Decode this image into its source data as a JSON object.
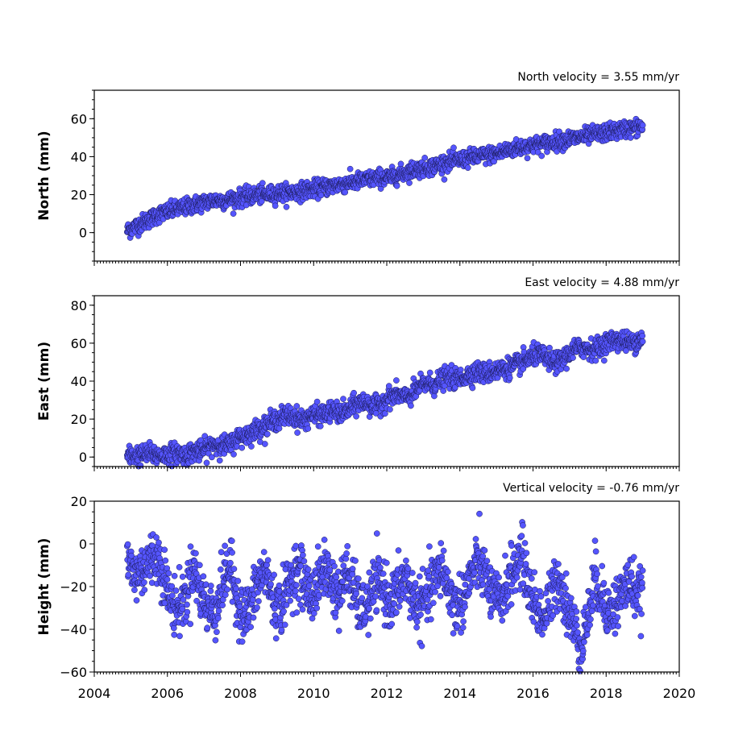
{
  "chart_data": [
    {
      "type": "scatter",
      "title": "North velocity = 3.55 mm/yr",
      "ylabel": "North (mm)",
      "xlabel": "",
      "xlim": [
        2004,
        2020
      ],
      "ylim": [
        -15,
        75
      ],
      "yticks": [
        "0",
        "20",
        "40",
        "60"
      ],
      "ytick_values": [
        0,
        20,
        40,
        60
      ],
      "point_color": "#5555ff",
      "series": [
        {
          "x": [
            2004.9,
            2005.0,
            2005.2,
            2005.4,
            2005.6,
            2005.8,
            2006.0,
            2006.2,
            2006.4,
            2006.6,
            2006.8,
            2007.0,
            2007.3,
            2007.6,
            2007.9,
            2008.2,
            2008.5,
            2008.8,
            2009.1,
            2009.4,
            2009.7,
            2010.0,
            2010.3,
            2010.6,
            2010.9,
            2011.2,
            2011.5,
            2011.8,
            2012.1,
            2012.4,
            2012.7,
            2013.0,
            2013.3,
            2013.6,
            2013.9,
            2014.2,
            2014.5,
            2014.8,
            2015.1,
            2015.4,
            2015.7,
            2016.0,
            2016.3,
            2016.6,
            2016.9,
            2017.2,
            2017.5,
            2017.8,
            2018.1,
            2018.4,
            2018.7,
            2019.0
          ],
          "y": [
            1,
            2,
            4,
            6,
            8,
            10,
            11,
            12,
            13,
            14,
            15,
            16,
            17,
            17,
            18,
            19,
            20,
            20,
            21,
            21,
            22,
            23,
            24,
            25,
            26,
            27,
            28,
            29,
            29,
            31,
            33,
            34,
            35,
            37,
            38,
            39,
            40,
            41,
            42,
            44,
            45,
            46,
            47,
            48,
            49,
            50,
            51,
            52,
            53,
            54,
            55,
            56
          ]
        }
      ]
    },
    {
      "type": "scatter",
      "title": "East velocity = 4.88 mm/yr",
      "ylabel": "East (mm)",
      "xlabel": "",
      "xlim": [
        2004,
        2020
      ],
      "ylim": [
        -5,
        85
      ],
      "yticks": [
        "0",
        "20",
        "40",
        "60",
        "80"
      ],
      "ytick_values": [
        0,
        20,
        40,
        60,
        80
      ],
      "point_color": "#5555ff",
      "series": [
        {
          "x": [
            2004.9,
            2005.1,
            2005.3,
            2005.5,
            2005.7,
            2005.9,
            2006.1,
            2006.3,
            2006.5,
            2006.7,
            2006.9,
            2007.1,
            2007.3,
            2007.5,
            2007.7,
            2007.9,
            2008.1,
            2008.3,
            2008.5,
            2008.7,
            2008.9,
            2009.1,
            2009.3,
            2009.5,
            2009.7,
            2009.9,
            2010.1,
            2010.3,
            2010.5,
            2010.7,
            2010.9,
            2011.1,
            2011.3,
            2011.5,
            2011.7,
            2011.9,
            2012.1,
            2012.3,
            2012.5,
            2012.7,
            2012.9,
            2013.1,
            2013.3,
            2013.5,
            2013.7,
            2013.9,
            2014.1,
            2014.3,
            2014.5,
            2014.7,
            2014.9,
            2015.1,
            2015.3,
            2015.5,
            2015.7,
            2015.9,
            2016.1,
            2016.3,
            2016.5,
            2016.7,
            2016.9,
            2017.1,
            2017.3,
            2017.5,
            2017.7,
            2017.9,
            2018.1,
            2018.3,
            2018.5,
            2018.7,
            2018.9,
            2019.0
          ],
          "y": [
            0,
            1,
            1,
            2,
            1,
            1,
            2,
            2,
            1,
            3,
            3,
            5,
            7,
            6,
            6,
            10,
            11,
            13,
            15,
            17,
            19,
            21,
            22,
            21,
            19,
            22,
            22,
            23,
            24,
            23,
            24,
            27,
            29,
            28,
            26,
            29,
            32,
            33,
            31,
            33,
            37,
            39,
            38,
            41,
            42,
            41,
            42,
            44,
            45,
            44,
            45,
            46,
            47,
            48,
            50,
            52,
            54,
            53,
            50,
            50,
            53,
            56,
            58,
            57,
            57,
            59,
            61,
            62,
            61,
            60,
            62,
            63
          ]
        }
      ]
    },
    {
      "type": "scatter",
      "title": "Vertical velocity = -0.76 mm/yr",
      "ylabel": "Height (mm)",
      "xlabel": "",
      "xlim": [
        2004,
        2020
      ],
      "ylim": [
        -60,
        20
      ],
      "yticks": [
        "−60",
        "−40",
        "−20",
        "0",
        "20"
      ],
      "ytick_values": [
        -60,
        -40,
        -20,
        0,
        20
      ],
      "xticks": [
        "2004",
        "2006",
        "2008",
        "2010",
        "2012",
        "2014",
        "2016",
        "2018",
        "2020"
      ],
      "xtick_values": [
        2004,
        2006,
        2008,
        2010,
        2012,
        2014,
        2016,
        2018,
        2020
      ],
      "point_color": "#5555ff",
      "series": [
        {
          "x": [
            2004.9,
            2005.1,
            2005.3,
            2005.5,
            2005.7,
            2005.9,
            2006.1,
            2006.3,
            2006.5,
            2006.7,
            2006.9,
            2007.1,
            2007.3,
            2007.5,
            2007.7,
            2007.9,
            2008.1,
            2008.3,
            2008.5,
            2008.7,
            2008.9,
            2009.1,
            2009.3,
            2009.5,
            2009.7,
            2009.9,
            2010.1,
            2010.3,
            2010.5,
            2010.7,
            2010.9,
            2011.1,
            2011.3,
            2011.5,
            2011.7,
            2011.9,
            2012.1,
            2012.3,
            2012.5,
            2012.7,
            2012.9,
            2013.1,
            2013.3,
            2013.5,
            2013.7,
            2013.9,
            2014.1,
            2014.3,
            2014.5,
            2014.7,
            2014.9,
            2015.1,
            2015.3,
            2015.5,
            2015.7,
            2015.9,
            2016.1,
            2016.3,
            2016.5,
            2016.7,
            2016.9,
            2017.1,
            2017.3,
            2017.5,
            2017.7,
            2017.9,
            2018.1,
            2018.3,
            2018.5,
            2018.7,
            2018.9,
            2019.0
          ],
          "y": [
            -8,
            -15,
            -12,
            -8,
            -5,
            -14,
            -28,
            -30,
            -25,
            -10,
            -22,
            -30,
            -32,
            -20,
            -10,
            -25,
            -35,
            -28,
            -18,
            -12,
            -28,
            -30,
            -20,
            -12,
            -15,
            -25,
            -20,
            -10,
            -18,
            -25,
            -12,
            -22,
            -32,
            -28,
            -18,
            -20,
            -28,
            -22,
            -15,
            -25,
            -30,
            -25,
            -18,
            -10,
            -22,
            -30,
            -25,
            -15,
            -8,
            -15,
            -25,
            -28,
            -18,
            -12,
            -5,
            -22,
            -30,
            -35,
            -25,
            -15,
            -28,
            -38,
            -48,
            -35,
            -15,
            -25,
            -32,
            -28,
            -20,
            -18,
            -25,
            -22
          ]
        }
      ]
    }
  ]
}
